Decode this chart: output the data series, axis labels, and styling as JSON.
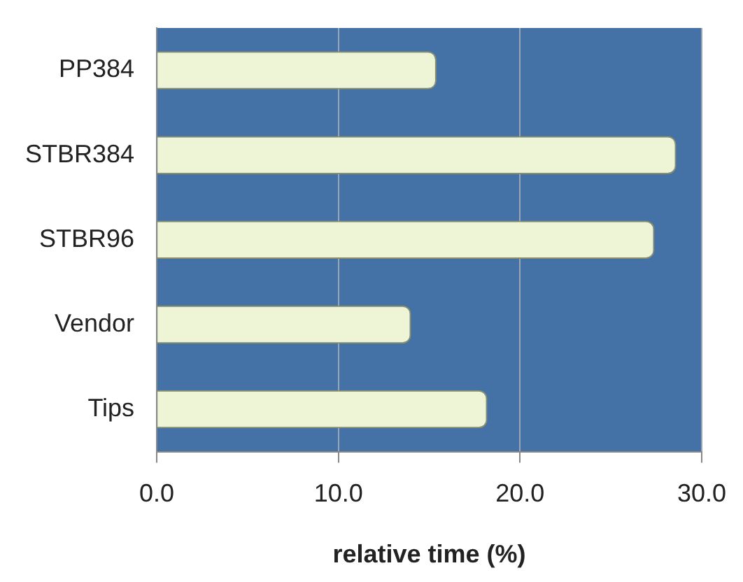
{
  "chart_data": {
    "type": "bar",
    "orientation": "horizontal",
    "xlabel": "relative time (%)",
    "categories": [
      "PP384",
      "STBR384",
      "STBR96",
      "Vendor",
      "Tips"
    ],
    "values": [
      15.4,
      28.6,
      27.4,
      14.0,
      18.2
    ],
    "color": "#eef5d6",
    "xlim": [
      0,
      30
    ],
    "xticks": [
      {
        "value": 0,
        "label": "0.0"
      },
      {
        "value": 10,
        "label": "10.0"
      },
      {
        "value": 20,
        "label": "20.0"
      },
      {
        "value": 30,
        "label": "30.0"
      }
    ],
    "grid": "x",
    "legend": false
  }
}
